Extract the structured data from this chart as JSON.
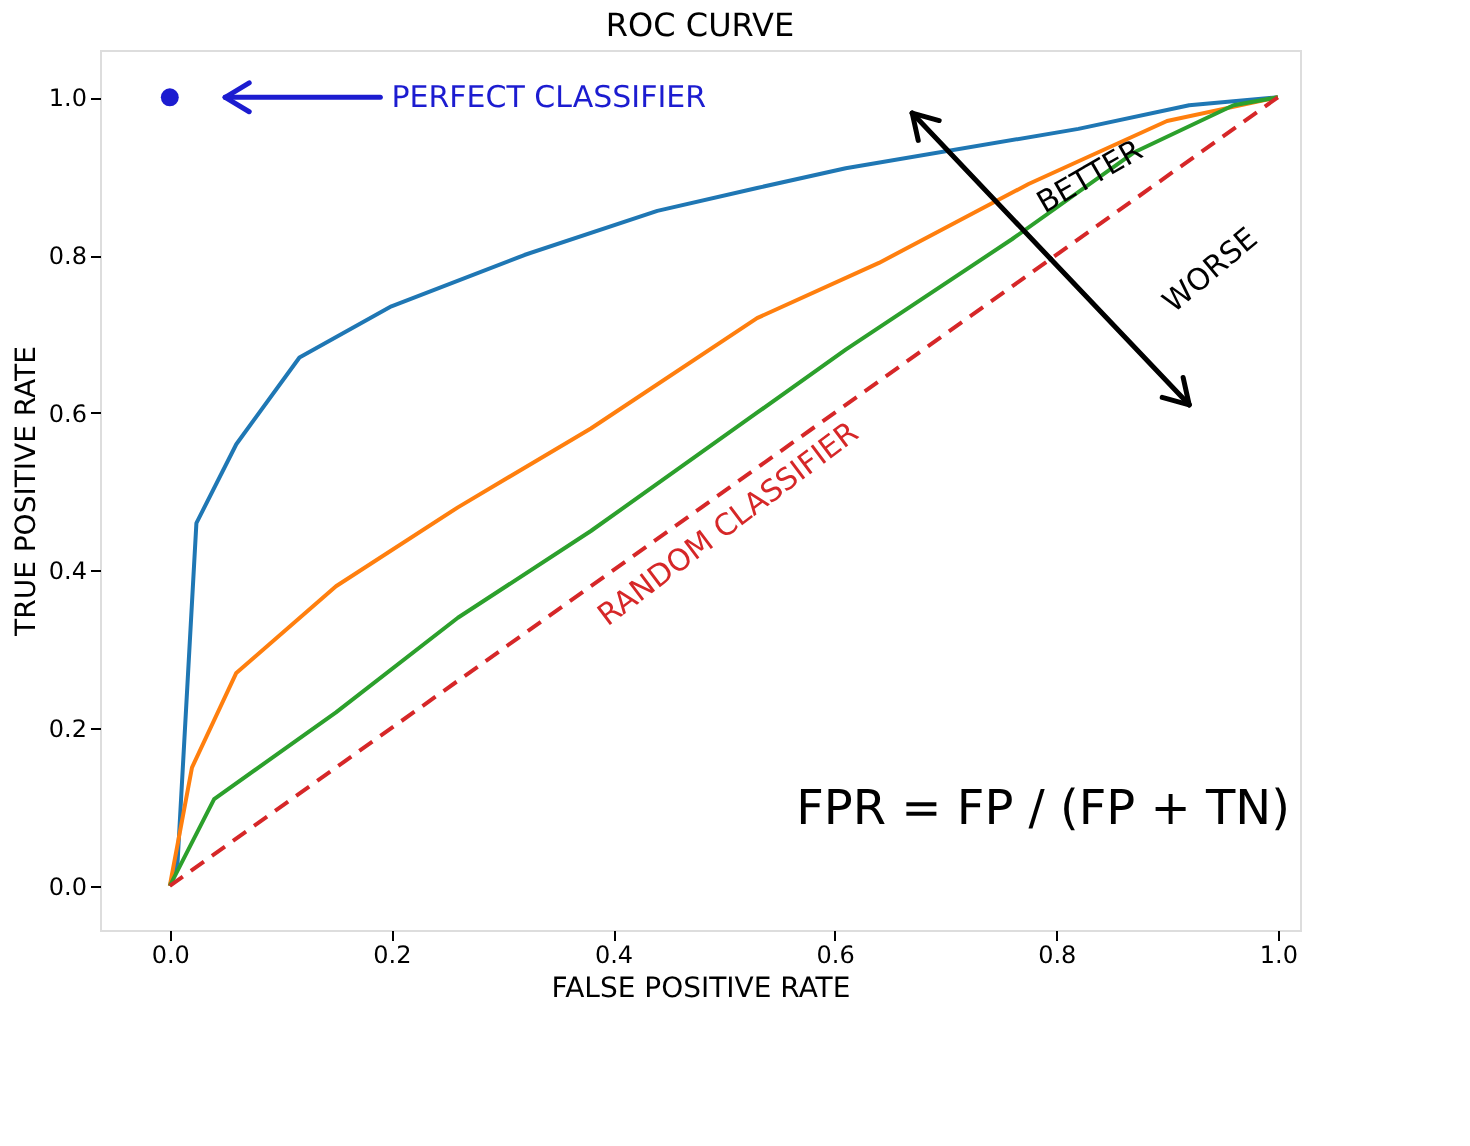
{
  "chart_data": {
    "type": "line",
    "title": "ROC CURVE",
    "xlabel": "FALSE POSITIVE RATE",
    "ylabel": "TRUE POSITIVE RATE",
    "xlim": [
      -0.063,
      1.02
    ],
    "ylim": [
      -0.056,
      1.06
    ],
    "xticks": [
      {
        "value": 0,
        "label": "0.0"
      },
      0.2,
      0.4,
      0.6,
      0.8,
      {
        "value": 1,
        "label": "1.0"
      }
    ],
    "yticks": [
      {
        "value": 0,
        "label": "0.0"
      },
      0.2,
      0.4,
      0.6,
      0.8,
      {
        "value": 1,
        "label": "1.0"
      }
    ],
    "grid": false,
    "series": [
      {
        "color": "#1f77b4",
        "x": [
          0,
          0.007,
          0.024,
          0.06,
          0.117,
          0.2,
          0.32,
          0.44,
          0.53,
          0.61,
          0.82,
          0.92,
          1
        ],
        "values": [
          0,
          0.03,
          0.46,
          0.56,
          0.67,
          0.735,
          0.8,
          0.856,
          0.885,
          0.91,
          0.96,
          0.99,
          1
        ]
      },
      {
        "color": "#ff7f0e",
        "x": [
          0,
          0.02,
          0.06,
          0.15,
          0.26,
          0.38,
          0.53,
          0.64,
          0.775,
          0.9,
          1
        ],
        "values": [
          0,
          0.15,
          0.27,
          0.38,
          0.48,
          0.58,
          0.72,
          0.79,
          0.89,
          0.97,
          1
        ]
      },
      {
        "color": "#2ca02c",
        "x": [
          0,
          0.04,
          0.15,
          0.26,
          0.38,
          0.53,
          0.61,
          0.76,
          0.87,
          0.96,
          1
        ],
        "values": [
          0,
          0.11,
          0.22,
          0.34,
          0.45,
          0.6,
          0.68,
          0.82,
          0.93,
          0.99,
          1
        ]
      },
      {
        "color": "#d62728",
        "line_style": "dashed",
        "x": [
          0,
          1
        ],
        "values": [
          0,
          1
        ]
      },
      {
        "type": "scatter",
        "marker": "circle",
        "color": "#1c1cd0",
        "x": [
          0
        ],
        "values": [
          1
        ]
      }
    ],
    "annotations": [
      "PERFECT CLASSIFIER",
      {
        "text": "RANDOM CLASSIFIER",
        "x": 0.5,
        "y": 0.5
      },
      {
        "text": "BETTER",
        "x": 0.83,
        "y": 0.9
      },
      "WORSE",
      "FPR = FP / (FP + TN)"
    ]
  }
}
